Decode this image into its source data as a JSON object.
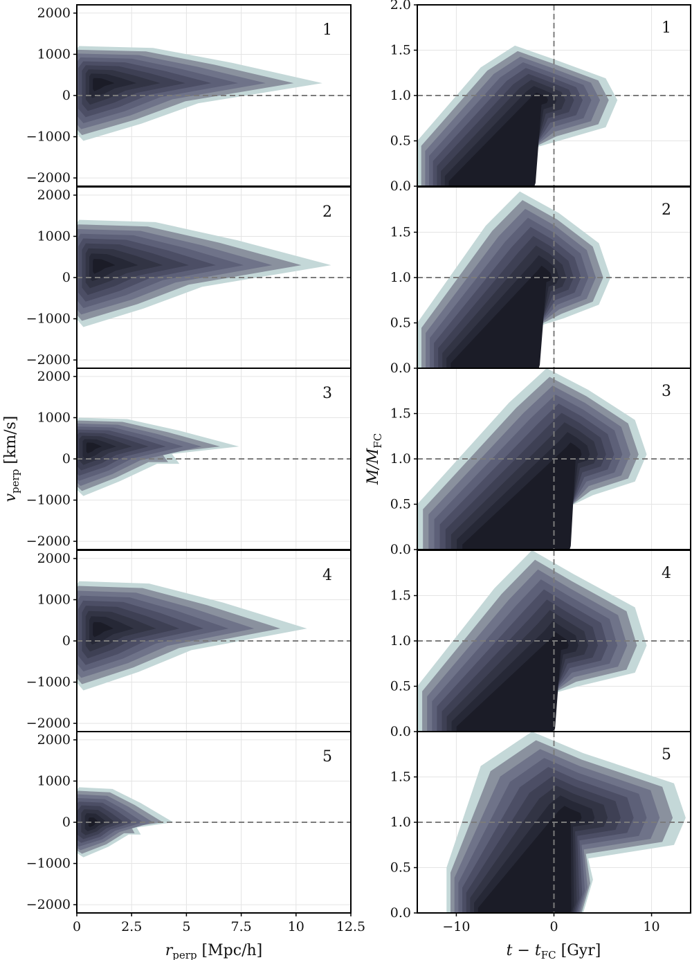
{
  "colors": {
    "levels": [
      "#c4d8d8",
      "#8a919e",
      "#6f7389",
      "#5d6078",
      "#4c4e65",
      "#3e4054",
      "#323444",
      "#262836",
      "#1b1c27"
    ],
    "grid": "#e4e4e4",
    "ref_line": "#7b7b7b"
  },
  "chart_data": [
    {
      "type": "contour",
      "column": "left",
      "xlabel": "r_perp [Mpc/h]",
      "ylabel": "v_perp [km/s]",
      "xlim": [
        0,
        12.5
      ],
      "ylim": [
        -2200,
        2200
      ],
      "xticks": [
        0,
        2.5,
        5,
        7.5,
        10,
        12.5
      ],
      "xtick_labels": [
        "0",
        "2.5",
        "5",
        "7.5",
        "10",
        "12.5"
      ],
      "yticks": [
        -2000,
        -1000,
        0,
        1000,
        2000
      ],
      "ytick_labels": [
        "−2000",
        "−1000",
        "0",
        "1000",
        "2000"
      ],
      "reference_lines": {
        "horizontal": 0
      },
      "grid": true,
      "panels": [
        {
          "label": "1",
          "peak": [
            0.9,
            300
          ],
          "x_extent": 11.2,
          "v_top": 1200,
          "v_bottom": -1100,
          "v_tip": 300,
          "kink": 0
        },
        {
          "label": "2",
          "peak": [
            0.9,
            300
          ],
          "x_extent": 11.6,
          "v_top": 1400,
          "v_bottom": -1200,
          "v_tip": 300,
          "kink": 0
        },
        {
          "label": "3",
          "peak": [
            0.6,
            300
          ],
          "x_extent": 7.4,
          "v_top": 1000,
          "v_bottom": -900,
          "v_tip": 300,
          "kink": 0.35
        },
        {
          "label": "4",
          "peak": [
            0.9,
            300
          ],
          "x_extent": 10.5,
          "v_top": 1450,
          "v_bottom": -1200,
          "v_tip": 300,
          "kink": 0
        },
        {
          "label": "5",
          "peak": [
            0.7,
            0
          ],
          "x_extent": 4.4,
          "v_top": 850,
          "v_bottom": -850,
          "v_tip": 0,
          "kink": 1.0
        }
      ]
    },
    {
      "type": "contour",
      "column": "right",
      "xlabel": "t − t_FC [Gyr]",
      "ylabel": "M/M_FC",
      "xlim": [
        -14,
        14
      ],
      "ylim": [
        0,
        2.0
      ],
      "xticks": [
        -10,
        0,
        10
      ],
      "xtick_labels": [
        "−10",
        "0",
        "10"
      ],
      "yticks": [
        0,
        0.5,
        1.0,
        1.5,
        2.0
      ],
      "ytick_labels": [
        "0.0",
        "0.5",
        "1.0",
        "1.5",
        "2.0"
      ],
      "first_panel_shows_top_tick": true,
      "reference_lines": {
        "horizontal": 1.0,
        "vertical": 0
      },
      "grid": true,
      "panels": [
        {
          "label": "1",
          "peak": [
            -1.5,
            0.95
          ],
          "outer": {
            "x_min": -14,
            "x_max": 6.5,
            "m_max": 1.55,
            "tail_min": -6
          },
          "spread": 1.0
        },
        {
          "label": "2",
          "peak": [
            -1.0,
            1.0
          ],
          "outer": {
            "x_min": -14,
            "x_max": 5.8,
            "m_max": 1.95,
            "tail_min": -6
          },
          "spread": 1.0
        },
        {
          "label": "3",
          "peak": [
            2.0,
            1.05
          ],
          "outer": {
            "x_min": -14,
            "x_max": 9.5,
            "m_max": 2.0,
            "tail_min": -1.5
          },
          "spread": 1.1
        },
        {
          "label": "4",
          "peak": [
            0.5,
            0.95
          ],
          "outer": {
            "x_min": -14,
            "x_max": 9.5,
            "m_max": 2.0,
            "tail_min": -4
          },
          "spread": 1.1
        },
        {
          "label": "5",
          "peak": [
            1.5,
            1.05
          ],
          "outer": {
            "x_min": -11,
            "x_max": 13.5,
            "m_max": 2.0,
            "tail_min": 3
          },
          "spread": 1.5
        }
      ]
    }
  ]
}
